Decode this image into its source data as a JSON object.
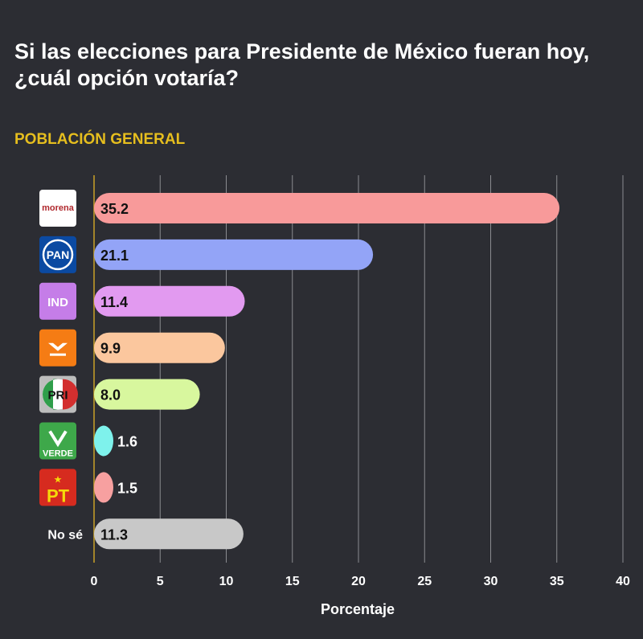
{
  "chart_data": {
    "type": "bar",
    "orientation": "horizontal",
    "title": "Si las elecciones para Presidente de México fueran hoy, ¿cuál opción votaría?",
    "subtitle": "POBLACIÓN GENERAL",
    "xlabel": "Porcentaje",
    "ylabel": "",
    "xlim": [
      0,
      40
    ],
    "xticks": [
      0,
      5,
      10,
      15,
      20,
      25,
      30,
      35,
      40
    ],
    "grid": true,
    "categories": [
      "morena",
      "PAN",
      "IND",
      "MC",
      "PRI",
      "VERDE",
      "PT",
      "No sé"
    ],
    "values": [
      35.2,
      21.1,
      11.4,
      9.9,
      8.0,
      1.6,
      1.5,
      11.3
    ],
    "value_labels": [
      "35.2",
      "21.1",
      "11.4",
      "9.9",
      "8.0",
      "1.6",
      "1.5",
      "11.3"
    ],
    "colors": [
      "#f89a9a",
      "#93a4f7",
      "#e29af0",
      "#fbc79e",
      "#d8f79e",
      "#7ef2ec",
      "#f7a0a0",
      "#c8c8c8"
    ],
    "logo_colors": [
      "#ffffff",
      "#0b4aa2",
      "#c57de8",
      "#f57c14",
      "#bdbdbd",
      "#3ea84a",
      "#d62b1f",
      null
    ],
    "logo_text": [
      "morena",
      "PAN",
      "IND",
      "",
      "PRI",
      "VERDE",
      "PT",
      null
    ],
    "row_labels": [
      null,
      null,
      null,
      null,
      null,
      null,
      null,
      "No sé"
    ],
    "zero_line_color": "#c9a227",
    "subtitle_color": "#e6be1e",
    "background": "#2c2d33"
  }
}
